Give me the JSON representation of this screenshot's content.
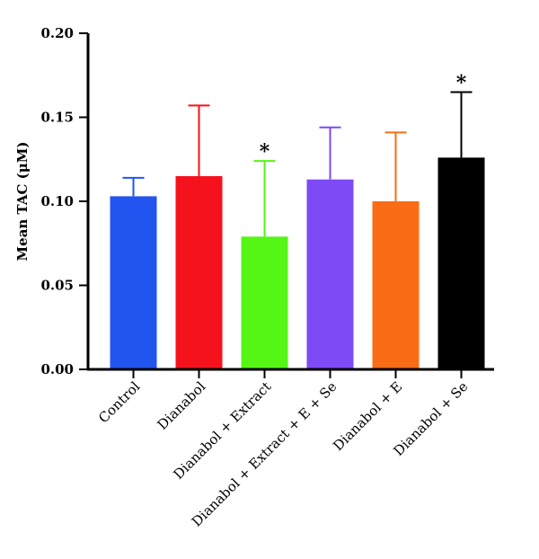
{
  "chart_data": {
    "type": "bar",
    "title": "",
    "xlabel": "",
    "ylabel": "Mean TAC (μM)",
    "ylim": [
      0,
      0.2
    ],
    "yticks": [
      "0.00",
      "0.05",
      "0.10",
      "0.15",
      "0.20"
    ],
    "grid": false,
    "legend": "none",
    "categories": [
      "Control",
      "Dianabol",
      "Dianabol + Extract",
      "Dianabol + Extract + E + Se",
      "Dianabol + E",
      "Dianabol + Se"
    ],
    "values": [
      0.103,
      0.115,
      0.079,
      0.113,
      0.1,
      0.126
    ],
    "errors": [
      0.011,
      0.042,
      0.045,
      0.031,
      0.041,
      0.039
    ],
    "colors": [
      "#2255f0",
      "#f5121c",
      "#55f516",
      "#7d4af5",
      "#fb6c16",
      "#000000"
    ],
    "significance": [
      "",
      "",
      "*",
      "",
      "",
      "*"
    ]
  }
}
